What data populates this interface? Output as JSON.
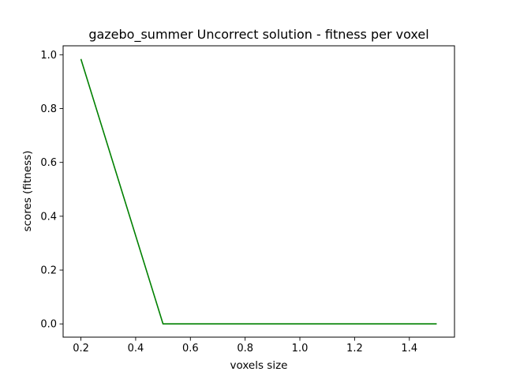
{
  "chart_data": {
    "type": "line",
    "title": "gazebo_summer Uncorrect solution - fitness per voxel",
    "xlabel": "voxels size",
    "ylabel": "scores (fitness)",
    "xlim": [
      0.135,
      1.565
    ],
    "ylim": [
      -0.0492,
      1.0332
    ],
    "xticks": [
      0.2,
      0.4,
      0.6,
      0.8,
      1.0,
      1.2,
      1.4
    ],
    "xtick_labels": [
      "0.2",
      "0.4",
      "0.6",
      "0.8",
      "1.0",
      "1.2",
      "1.4"
    ],
    "yticks": [
      0.0,
      0.2,
      0.4,
      0.6,
      0.8,
      1.0
    ],
    "ytick_labels": [
      "0.0",
      "0.2",
      "0.4",
      "0.6",
      "0.8",
      "1.0"
    ],
    "grid": false,
    "series": [
      {
        "color": "#008000",
        "x": [
          0.2,
          0.5,
          0.8,
          1.1,
          1.5
        ],
        "y": [
          0.984,
          0.0,
          0.0,
          0.0,
          0.0
        ]
      }
    ]
  }
}
